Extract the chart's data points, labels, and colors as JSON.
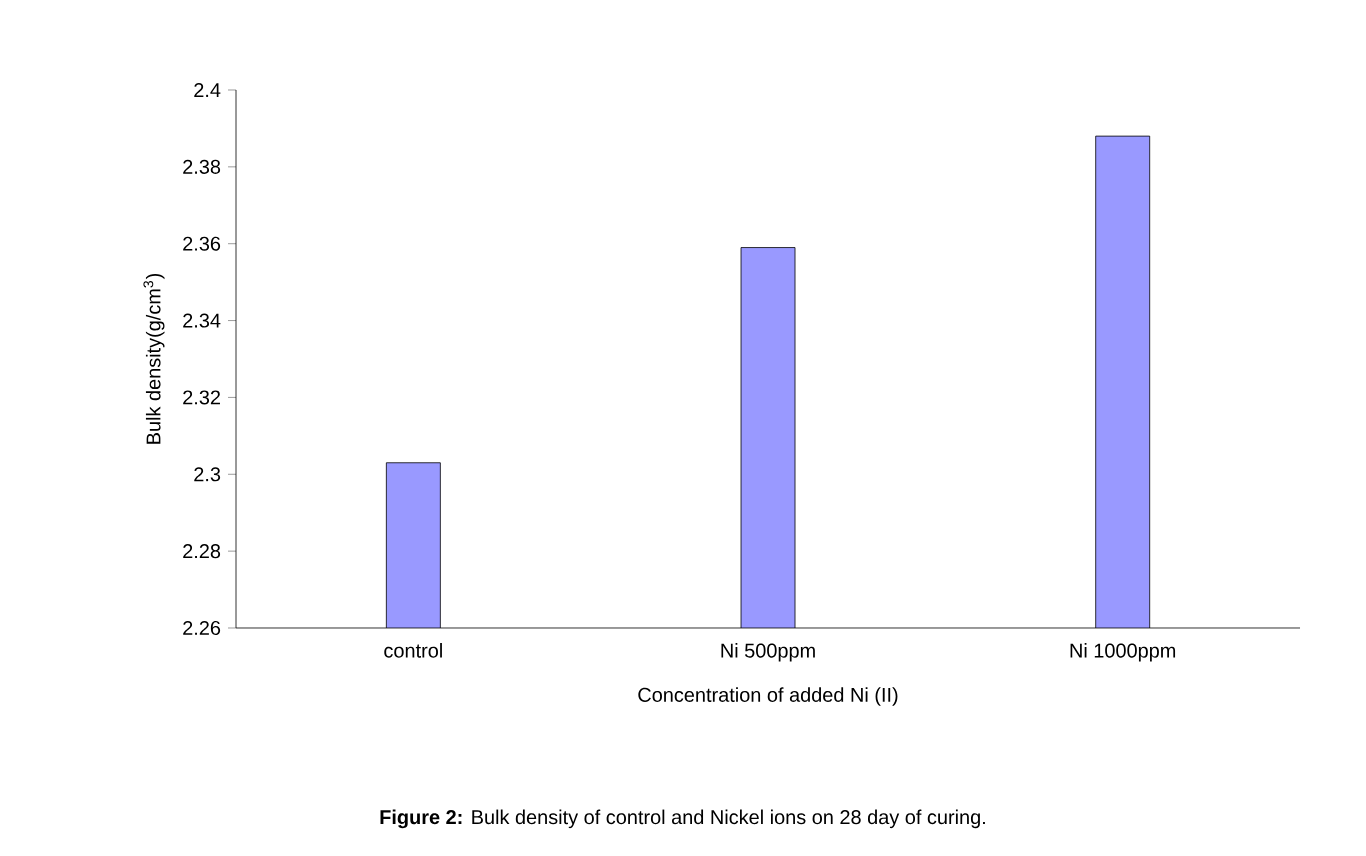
{
  "chart_data": {
    "type": "bar",
    "categories": [
      "control",
      "Ni 500ppm",
      "Ni 1000ppm"
    ],
    "values": [
      2.303,
      2.359,
      2.388
    ],
    "color": "#9999ff",
    "ylim": [
      2.26,
      2.4
    ],
    "yticks": [
      2.26,
      2.28,
      2.3,
      2.32,
      2.34,
      2.36,
      2.38,
      2.4
    ],
    "xlabel": "Concentration of added Ni (II)",
    "ylabel": "Bulk density(g/cm$^{3}$)",
    "annotations": [
      "**Figure 2:** Bulk density of control and Nickel ions on 28 day of curing."
    ],
    "grid": false
  }
}
